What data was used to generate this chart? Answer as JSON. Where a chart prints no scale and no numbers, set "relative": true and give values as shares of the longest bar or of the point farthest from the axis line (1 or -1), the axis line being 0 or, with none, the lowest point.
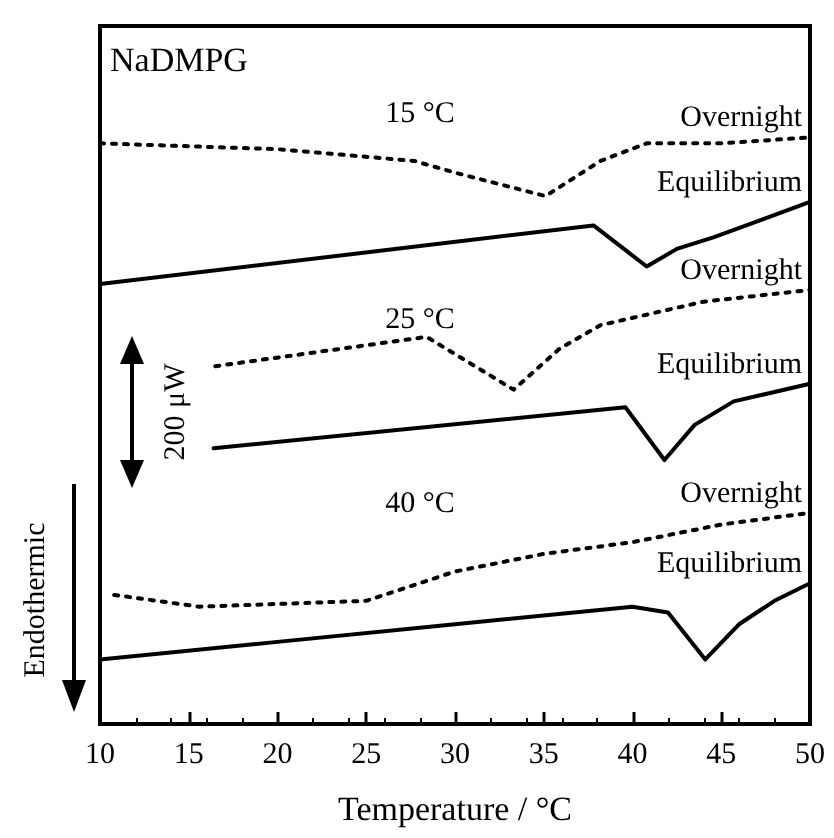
{
  "chart_data": {
    "type": "line",
    "relative": true,
    "xlabel": "Temperature / °C",
    "xlim": [
      10,
      50
    ],
    "xticks": [
      10,
      15,
      20,
      25,
      30,
      35,
      40,
      45,
      50
    ],
    "grid": false,
    "legend": false,
    "marker": "none",
    "annotations": [
      "NaDMPG",
      "15 °C",
      "25 °C",
      "40 °C",
      "200 μW",
      "Endothermic"
    ],
    "series": [
      {
        "name": "Overnight",
        "color": "#000000",
        "line_style": "dotted",
        "x": [
          10,
          20,
          27.7,
          30,
          35.1,
          38.2,
          40.8,
          45,
          50
        ],
        "values": [
          0.99,
          0.98,
          0.96,
          0.94,
          0.9,
          0.96,
          0.99,
          0.99,
          1.0
        ]
      },
      {
        "name": "Equilibrium",
        "color": "#000000",
        "line_style": "solid",
        "x": [
          10,
          37.8,
          40.8,
          42.5,
          44.6,
          50
        ],
        "values": [
          0.75,
          0.85,
          0.78,
          0.81,
          0.83,
          0.89
        ]
      },
      {
        "name": "Overnight",
        "color": "#000000",
        "line_style": "dotted",
        "x": [
          16.5,
          28.4,
          33.3,
          35.9,
          38.2,
          44,
          50
        ],
        "values": [
          0.61,
          0.66,
          0.57,
          0.64,
          0.68,
          0.72,
          0.74
        ]
      },
      {
        "name": "Equilibrium",
        "color": "#000000",
        "line_style": "solid",
        "x": [
          16.4,
          39.6,
          41.8,
          43.5,
          45.7,
          50
        ],
        "values": [
          0.47,
          0.54,
          0.45,
          0.51,
          0.55,
          0.58
        ]
      },
      {
        "name": "Overnight",
        "color": "#000000",
        "line_style": "dotted",
        "x": [
          10.8,
          15.6,
          25,
          30,
          35,
          40,
          45,
          50
        ],
        "values": [
          0.22,
          0.2,
          0.21,
          0.26,
          0.29,
          0.31,
          0.34,
          0.36
        ]
      },
      {
        "name": "Equilibrium",
        "color": "#000000",
        "line_style": "solid",
        "x": [
          10,
          20,
          30,
          40,
          42,
          44.1,
          46,
          48,
          50
        ],
        "values": [
          0.11,
          0.14,
          0.17,
          0.2,
          0.19,
          0.11,
          0.17,
          0.21,
          0.24
        ]
      }
    ]
  }
}
